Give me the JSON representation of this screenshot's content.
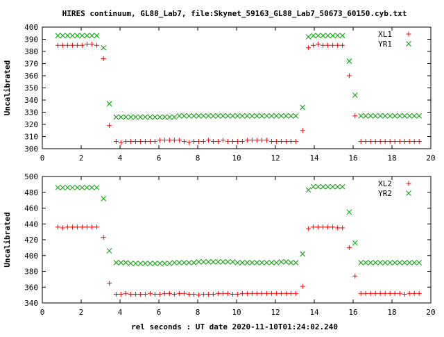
{
  "title": "HIRES continuum, GL88_Lab7, file:Skynet_59163_GL88_Lab7_50673_60150.cyb.txt",
  "xlabel": "rel seconds : UT date 2020-11-10T01:24:02.240",
  "colors": {
    "plus_series": "#ff0000",
    "x_series": "#00a000",
    "axis": "#000000",
    "grid": "#000000"
  },
  "chart_data": [
    {
      "type": "scatter",
      "ylabel": "Uncalibrated",
      "xlim": [
        0,
        20
      ],
      "ylim": [
        300,
        400
      ],
      "xticks": [
        0,
        2,
        4,
        6,
        8,
        10,
        12,
        14,
        16,
        18,
        20
      ],
      "yticks": [
        300,
        310,
        320,
        330,
        340,
        350,
        360,
        370,
        380,
        390,
        400
      ],
      "legend_position": "top-right",
      "series": [
        {
          "name": "XL1",
          "marker": "plus",
          "color": "#ff0000",
          "x": [
            0.8,
            1.05,
            1.3,
            1.55,
            1.8,
            2.05,
            2.3,
            2.55,
            2.8,
            3.15,
            3.45,
            3.8,
            4.05,
            4.3,
            4.55,
            4.8,
            5.05,
            5.3,
            5.55,
            5.8,
            6.05,
            6.3,
            6.55,
            6.8,
            7.05,
            7.3,
            7.55,
            7.8,
            8.05,
            8.3,
            8.55,
            8.8,
            9.05,
            9.3,
            9.55,
            9.8,
            10.05,
            10.3,
            10.55,
            10.8,
            11.05,
            11.3,
            11.55,
            11.8,
            12.05,
            12.3,
            12.55,
            12.8,
            13.05,
            13.4,
            13.7,
            13.95,
            14.2,
            14.45,
            14.7,
            14.95,
            15.2,
            15.45,
            15.8,
            16.1,
            16.4,
            16.65,
            16.9,
            17.15,
            17.4,
            17.65,
            17.9,
            18.15,
            18.4,
            18.65,
            18.9,
            19.15,
            19.4
          ],
          "y": [
            385,
            385,
            385,
            385,
            385,
            385,
            386,
            386,
            385,
            374,
            319,
            306,
            305,
            306,
            306,
            306,
            306,
            306,
            306,
            306,
            307,
            307,
            307,
            307,
            307,
            306,
            305,
            306,
            306,
            306,
            307,
            306,
            306,
            307,
            306,
            306,
            306,
            306,
            307,
            307,
            307,
            307,
            307,
            306,
            306,
            306,
            306,
            306,
            306,
            315,
            383,
            385,
            386,
            385,
            385,
            385,
            385,
            385,
            360,
            327,
            306,
            306,
            306,
            306,
            306,
            306,
            306,
            306,
            306,
            306,
            306,
            306,
            306
          ]
        },
        {
          "name": "YR1",
          "marker": "x",
          "color": "#00a000",
          "x": [
            0.8,
            1.05,
            1.3,
            1.55,
            1.8,
            2.05,
            2.3,
            2.55,
            2.8,
            3.15,
            3.45,
            3.8,
            4.05,
            4.3,
            4.55,
            4.8,
            5.05,
            5.3,
            5.55,
            5.8,
            6.05,
            6.3,
            6.55,
            6.8,
            7.05,
            7.3,
            7.55,
            7.8,
            8.05,
            8.3,
            8.55,
            8.8,
            9.05,
            9.3,
            9.55,
            9.8,
            10.05,
            10.3,
            10.55,
            10.8,
            11.05,
            11.3,
            11.55,
            11.8,
            12.05,
            12.3,
            12.55,
            12.8,
            13.05,
            13.4,
            13.7,
            13.95,
            14.2,
            14.45,
            14.7,
            14.95,
            15.2,
            15.45,
            15.8,
            16.1,
            16.4,
            16.65,
            16.9,
            17.15,
            17.4,
            17.65,
            17.9,
            18.15,
            18.4,
            18.65,
            18.9,
            19.15,
            19.4
          ],
          "y": [
            393,
            393,
            393,
            393,
            393,
            393,
            393,
            393,
            393,
            383,
            337,
            326,
            326,
            326,
            326,
            326,
            326,
            326,
            326,
            326,
            326,
            326,
            326,
            326,
            327,
            327,
            327,
            327,
            327,
            327,
            327,
            327,
            327,
            327,
            327,
            327,
            327,
            327,
            327,
            327,
            327,
            327,
            327,
            327,
            327,
            327,
            327,
            327,
            327,
            334,
            392,
            393,
            393,
            393,
            393,
            393,
            393,
            393,
            372,
            344,
            327,
            327,
            327,
            327,
            327,
            327,
            327,
            327,
            327,
            327,
            327,
            327,
            327
          ]
        }
      ]
    },
    {
      "type": "scatter",
      "ylabel": "Uncalibrated",
      "xlabel": "rel seconds : UT date 2020-11-10T01:24:02.240",
      "xlim": [
        0,
        20
      ],
      "ylim": [
        340,
        500
      ],
      "xticks": [
        0,
        2,
        4,
        6,
        8,
        10,
        12,
        14,
        16,
        18,
        20
      ],
      "yticks": [
        340,
        360,
        380,
        400,
        420,
        440,
        460,
        480,
        500
      ],
      "legend_position": "top-right",
      "series": [
        {
          "name": "XL2",
          "marker": "plus",
          "color": "#ff0000",
          "x": [
            0.8,
            1.05,
            1.3,
            1.55,
            1.8,
            2.05,
            2.3,
            2.55,
            2.8,
            3.15,
            3.45,
            3.8,
            4.05,
            4.3,
            4.55,
            4.8,
            5.05,
            5.3,
            5.55,
            5.8,
            6.05,
            6.3,
            6.55,
            6.8,
            7.05,
            7.3,
            7.55,
            7.8,
            8.05,
            8.3,
            8.55,
            8.8,
            9.05,
            9.3,
            9.55,
            9.8,
            10.05,
            10.3,
            10.55,
            10.8,
            11.05,
            11.3,
            11.55,
            11.8,
            12.05,
            12.3,
            12.55,
            12.8,
            13.05,
            13.4,
            13.7,
            13.95,
            14.2,
            14.45,
            14.7,
            14.95,
            15.2,
            15.45,
            15.8,
            16.1,
            16.4,
            16.65,
            16.9,
            17.15,
            17.4,
            17.65,
            17.9,
            18.15,
            18.4,
            18.65,
            18.9,
            19.15,
            19.4
          ],
          "y": [
            436,
            435,
            436,
            436,
            436,
            436,
            436,
            436,
            436,
            423,
            365,
            351,
            351,
            352,
            351,
            351,
            351,
            351,
            352,
            351,
            351,
            352,
            352,
            351,
            352,
            352,
            351,
            351,
            350,
            351,
            351,
            351,
            352,
            352,
            352,
            351,
            351,
            352,
            352,
            352,
            352,
            352,
            352,
            352,
            352,
            352,
            352,
            352,
            352,
            361,
            434,
            436,
            436,
            436,
            436,
            436,
            435,
            435,
            410,
            374,
            352,
            352,
            352,
            352,
            352,
            352,
            352,
            352,
            352,
            351,
            352,
            352,
            352
          ]
        },
        {
          "name": "YR2",
          "marker": "x",
          "color": "#00a000",
          "x": [
            0.8,
            1.05,
            1.3,
            1.55,
            1.8,
            2.05,
            2.3,
            2.55,
            2.8,
            3.15,
            3.45,
            3.8,
            4.05,
            4.3,
            4.55,
            4.8,
            5.05,
            5.3,
            5.55,
            5.8,
            6.05,
            6.3,
            6.55,
            6.8,
            7.05,
            7.3,
            7.55,
            7.8,
            8.05,
            8.3,
            8.55,
            8.8,
            9.05,
            9.3,
            9.55,
            9.8,
            10.05,
            10.3,
            10.55,
            10.8,
            11.05,
            11.3,
            11.55,
            11.8,
            12.05,
            12.3,
            12.55,
            12.8,
            13.05,
            13.4,
            13.7,
            13.95,
            14.2,
            14.45,
            14.7,
            14.95,
            15.2,
            15.45,
            15.8,
            16.1,
            16.4,
            16.65,
            16.9,
            17.15,
            17.4,
            17.65,
            17.9,
            18.15,
            18.4,
            18.65,
            18.9,
            19.15,
            19.4
          ],
          "y": [
            486,
            486,
            486,
            486,
            486,
            486,
            486,
            486,
            486,
            472,
            406,
            391,
            391,
            391,
            390,
            390,
            390,
            390,
            390,
            390,
            390,
            390,
            390,
            391,
            391,
            391,
            391,
            391,
            392,
            392,
            392,
            392,
            392,
            392,
            392,
            392,
            391,
            391,
            391,
            391,
            391,
            391,
            391,
            391,
            391,
            392,
            392,
            391,
            391,
            402,
            483,
            487,
            487,
            487,
            487,
            487,
            487,
            487,
            455,
            416,
            391,
            391,
            391,
            391,
            391,
            391,
            391,
            391,
            391,
            391,
            391,
            391,
            391
          ]
        }
      ]
    }
  ]
}
